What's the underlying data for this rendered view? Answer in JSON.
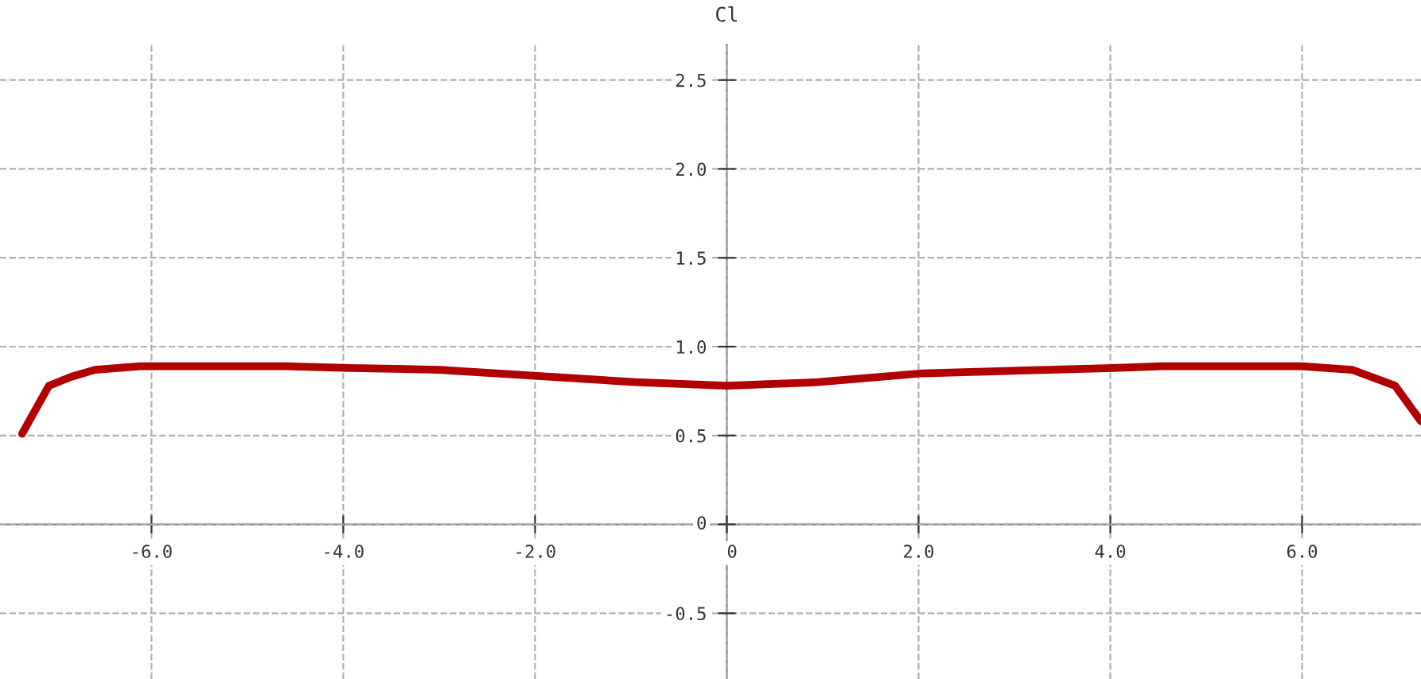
{
  "chart_data": {
    "type": "line",
    "ylabel": "Cl",
    "grid": true,
    "marker": "none",
    "line_style": "solid",
    "xlim": [
      -7.58,
      7.24
    ],
    "ylim": [
      -0.87,
      2.7
    ],
    "xticks": [
      {
        "value": -6,
        "label": "-6.0"
      },
      {
        "value": -4,
        "label": "-4.0"
      },
      {
        "value": -2,
        "label": "-2.0"
      },
      {
        "value": 0,
        "label": "0"
      },
      {
        "value": 2,
        "label": "2.0"
      },
      {
        "value": 4,
        "label": "4.0"
      },
      {
        "value": 6,
        "label": "6.0"
      }
    ],
    "yticks": [
      {
        "value": -0.5,
        "label": "-0.5"
      },
      0,
      0.5,
      {
        "value": 1,
        "label": "1.0"
      },
      1.5,
      {
        "value": 2,
        "label": "2.0"
      },
      2.5
    ],
    "series": [
      {
        "color": "#b00000",
        "x": [
          -7.35,
          -7.07,
          -6.84,
          -6.59,
          -6.12,
          -4.6,
          -3.93,
          -3.0,
          -0.95,
          0,
          0.95,
          2.04,
          4.03,
          4.53,
          6.0,
          6.52,
          6.97,
          7.24
        ],
        "values": [
          0.51,
          0.78,
          0.83,
          0.87,
          0.89,
          0.89,
          0.88,
          0.87,
          0.8,
          0.78,
          0.8,
          0.85,
          0.88,
          0.89,
          0.89,
          0.87,
          0.78,
          0.58
        ]
      }
    ]
  }
}
